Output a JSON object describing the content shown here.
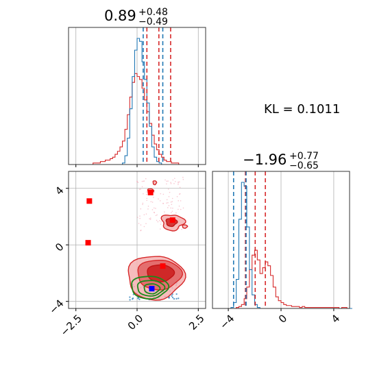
{
  "chart_data": [
    {
      "type": "histogram",
      "panel": "top-left",
      "title_main": "0.89",
      "title_sup": "+0.48",
      "title_sub": "−0.49",
      "xlim": [
        -2.8,
        2.8
      ],
      "bin_edges_start": -2.0,
      "bin_width": 0.1,
      "series": [
        {
          "name": "red",
          "color": "#d62728",
          "counts": [
            0,
            0,
            1,
            1,
            1,
            2,
            2,
            3,
            3,
            4,
            5,
            7,
            9,
            12,
            16,
            24,
            34,
            46,
            56,
            62,
            60,
            58,
            52,
            44,
            36,
            28,
            20,
            14,
            10,
            7,
            5,
            3,
            2,
            2,
            1,
            1,
            1,
            0,
            0,
            0,
            0
          ]
        },
        {
          "name": "blue",
          "color": "#1f77b4",
          "counts": [
            0,
            0,
            0,
            0,
            0,
            0,
            0,
            0,
            0,
            0,
            0,
            0,
            0,
            0,
            1,
            6,
            18,
            38,
            60,
            78,
            86,
            84,
            70,
            58,
            42,
            26,
            12,
            5,
            2,
            1,
            0,
            0,
            0,
            0,
            0,
            0,
            0,
            0,
            0,
            0,
            0
          ]
        }
      ],
      "red_quantiles": [
        0.4,
        0.89,
        1.37
      ],
      "blue_quantiles": [
        0.25,
        1.05
      ],
      "xticks": [
        -2.5,
        0.0,
        2.5
      ],
      "xtick_labels": [
        "−2.5",
        "0.0",
        "2.5"
      ]
    },
    {
      "type": "scatter-contour",
      "panel": "bottom-left",
      "xlim": [
        -2.8,
        2.8
      ],
      "ylim": [
        -4.5,
        5.2
      ],
      "xticks": [
        -2.5,
        0.0,
        2.5
      ],
      "xtick_labels": [
        "−2.5",
        "0.0",
        "2.5"
      ],
      "yticks": [
        -4,
        0,
        4
      ],
      "ytick_labels": [
        "−4",
        "0",
        "4"
      ],
      "red_markers": [
        [
          -1.95,
          3.1
        ],
        [
          -2.0,
          0.15
        ],
        [
          0.55,
          3.7
        ],
        [
          1.45,
          1.75
        ],
        [
          1.05,
          -1.5
        ]
      ],
      "blue_marker": [
        0.6,
        -3.1
      ],
      "colors": {
        "red": "#d62728",
        "red_light": "#f0a0a0",
        "green": "#1a8a1a",
        "blue": "#1f77b4",
        "marker_red": "#ff0000",
        "marker_blue": "#0000ff"
      }
    },
    {
      "type": "histogram",
      "panel": "bottom-right",
      "title_main": "−1.96",
      "title_sup": "+0.77",
      "title_sub": "−0.65",
      "xlim": [
        -5.2,
        5.2
      ],
      "bin_edges_start": -5.0,
      "bin_width": 0.2,
      "series": [
        {
          "name": "red",
          "color": "#d62728",
          "counts": [
            0,
            0,
            0,
            0,
            0,
            0,
            0,
            0,
            1,
            2,
            4,
            10,
            22,
            40,
            55,
            60,
            50,
            36,
            42,
            48,
            44,
            34,
            22,
            12,
            8,
            6,
            4,
            3,
            3,
            2,
            2,
            2,
            1,
            2,
            1,
            1,
            1,
            1,
            1,
            1,
            1,
            1,
            1,
            1,
            1,
            1,
            1,
            0,
            1,
            1,
            0,
            0
          ]
        },
        {
          "name": "blue",
          "color": "#1f77b4",
          "counts": [
            0,
            0,
            0,
            0,
            0,
            0,
            1,
            6,
            30,
            92,
            130,
            126,
            84,
            40,
            14,
            4,
            1,
            0,
            0,
            0,
            0,
            0,
            0,
            0,
            0,
            0,
            0,
            0,
            0,
            0,
            0,
            0,
            0,
            0,
            0,
            0,
            0,
            0,
            0,
            0,
            0,
            0,
            0,
            0,
            0,
            0,
            0,
            0,
            0,
            0,
            0,
            0
          ]
        }
      ],
      "red_quantiles": [
        -2.7,
        -1.96,
        -1.19
      ],
      "blue_quantiles": [
        -3.6,
        -2.65
      ],
      "xticks": [
        -4,
        0,
        4
      ],
      "xtick_labels": [
        "−4",
        "0",
        "4"
      ]
    }
  ],
  "kl_text": "KL = 0.1011"
}
